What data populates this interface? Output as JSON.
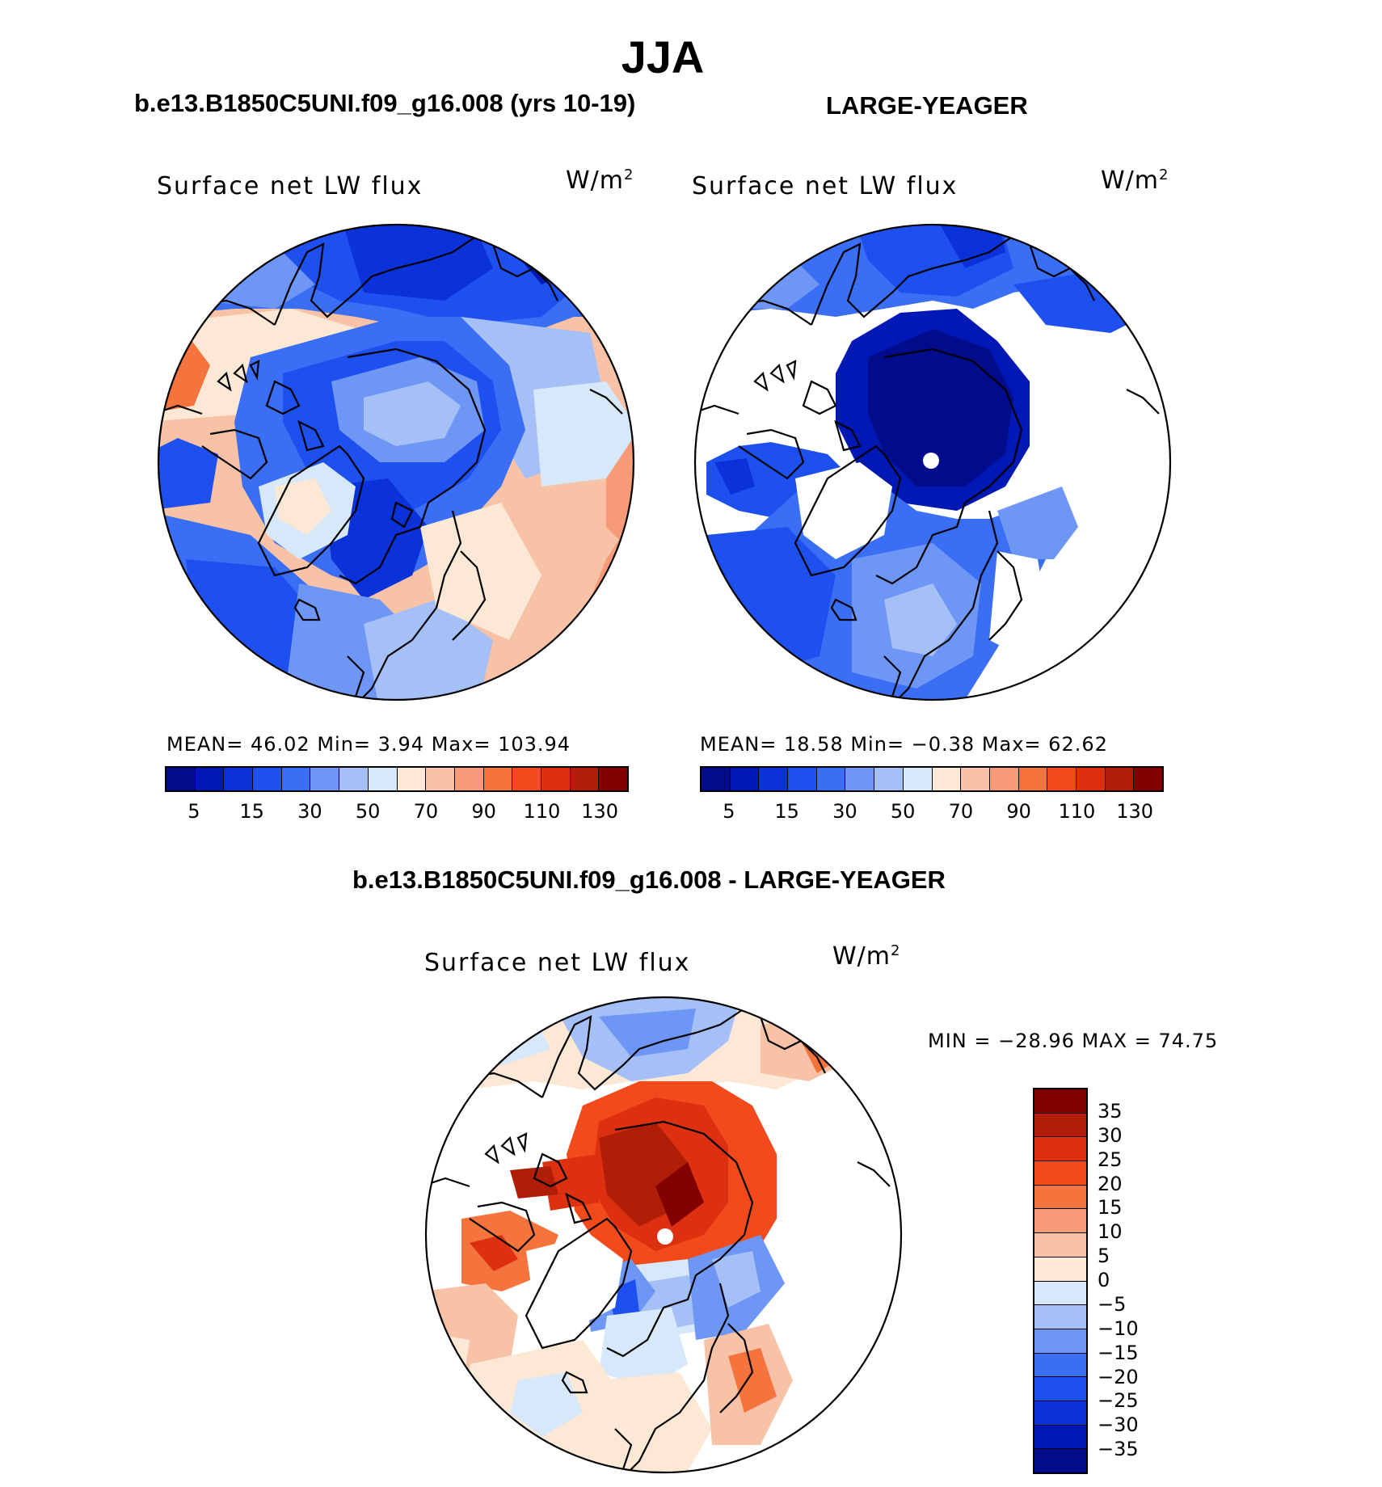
{
  "title": "JJA",
  "panels": {
    "left": {
      "title": "b.e13.B1850C5UNI.f09_g16.008 (yrs 10-19)",
      "variable": "Surface net LW flux",
      "units": "W/m",
      "units_exp": "2",
      "stats": "MEAN=   46.02   Min=     3.94   Max=  103.94",
      "mean": 46.02,
      "min": 3.94,
      "max": 103.94
    },
    "right": {
      "title": "LARGE-YEAGER",
      "variable": "Surface net LW flux",
      "units": "W/m",
      "units_exp": "2",
      "stats": "MEAN=   18.58   Min=   −0.38   Max=    62.62",
      "mean": 18.58,
      "min": -0.38,
      "max": 62.62
    },
    "diff": {
      "title": "b.e13.B1850C5UNI.f09_g16.008 - LARGE-YEAGER",
      "variable": "Surface net LW flux",
      "units": "W/m",
      "units_exp": "2",
      "minmax": "MIN  =  −28.96  MAX  =    74.75",
      "min": -28.96,
      "max": 74.75
    }
  },
  "abs_colorbar": {
    "labels": [
      "5",
      "15",
      "30",
      "50",
      "70",
      "90",
      "110",
      "130"
    ],
    "colors": [
      "#000c8c",
      "#0018b4",
      "#0a32d8",
      "#1e50f0",
      "#3a6ef4",
      "#6e96f4",
      "#a4c0f6",
      "#d6e8fa",
      "#fde8d6",
      "#f8c2a6",
      "#f69a78",
      "#f5743e",
      "#f24a1a",
      "#dc3010",
      "#b01e08",
      "#820000"
    ]
  },
  "diff_colorbar": {
    "labels": [
      "35",
      "30",
      "25",
      "20",
      "15",
      "10",
      "5",
      "0",
      "−5",
      "−10",
      "−15",
      "−20",
      "−25",
      "−30",
      "−35"
    ],
    "colors": [
      "#820000",
      "#b01e08",
      "#dc3010",
      "#f24a1a",
      "#f5743e",
      "#f69a78",
      "#f8c2a6",
      "#fde8d6",
      "#d6e8fa",
      "#a4c0f6",
      "#6e96f4",
      "#3a6ef4",
      "#1e50f0",
      "#0a32d8",
      "#0018b4",
      "#000c8c"
    ]
  }
}
